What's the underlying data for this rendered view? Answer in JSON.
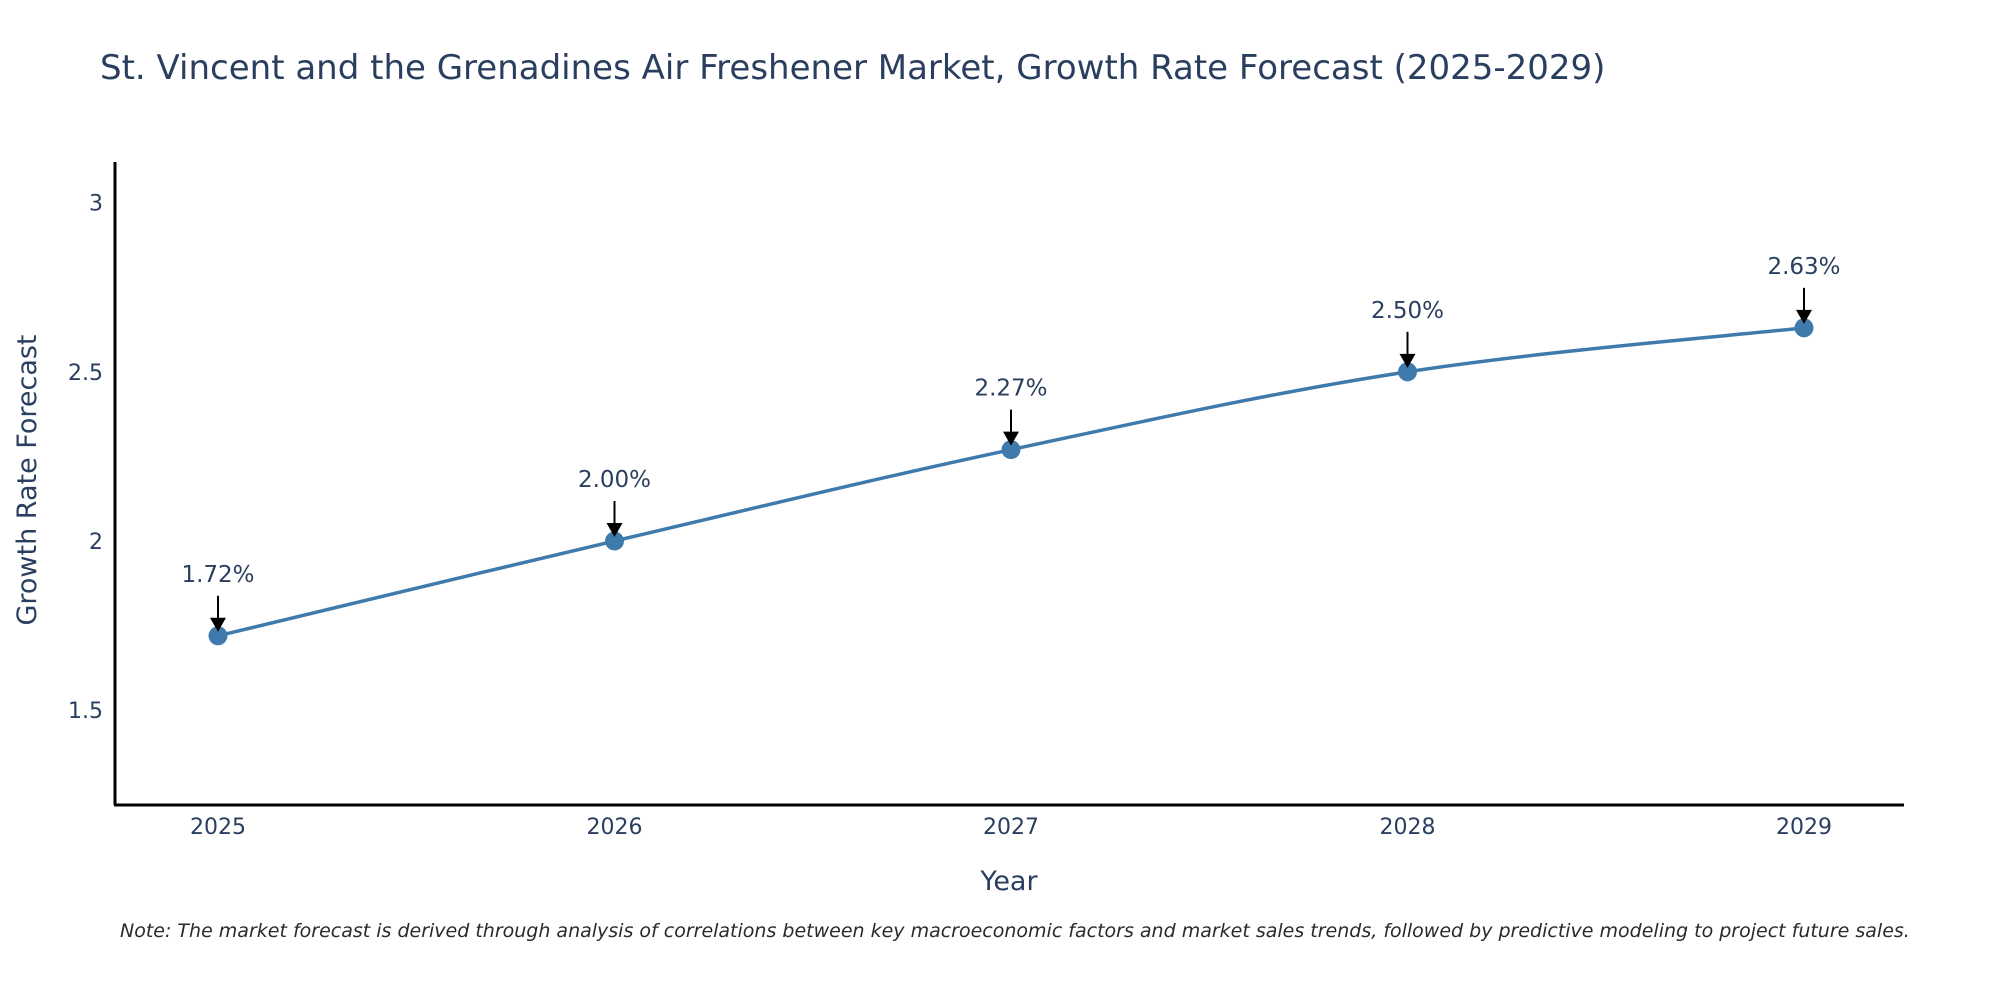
{
  "chart_data": {
    "type": "line",
    "title": "St. Vincent and the Grenadines Air Freshener Market, Growth Rate Forecast (2025-2029)",
    "xlabel": "Year",
    "ylabel": "Growth Rate Forecast",
    "categories": [
      "2025",
      "2026",
      "2027",
      "2028",
      "2029"
    ],
    "series": [
      {
        "name": "Growth Rate Forecast",
        "values": [
          1.72,
          2.0,
          2.27,
          2.5,
          2.63
        ],
        "labels": [
          "1.72%",
          "2.00%",
          "2.27%",
          "2.50%",
          "2.63%"
        ]
      }
    ],
    "ylim": [
      1.22,
      3.12
    ],
    "yticks": [
      1.5,
      2,
      2.5,
      3
    ],
    "ytick_labels": [
      "1.5",
      "2",
      "2.5",
      "3"
    ],
    "grid": false,
    "line_color": "#3f7aad",
    "marker_color": "#3f7aad",
    "arrow_color": "#000000",
    "note": "Note: The market forecast is derived through analysis of correlations between key macroeconomic factors and market sales trends, followed by predictive modeling to project future sales."
  }
}
